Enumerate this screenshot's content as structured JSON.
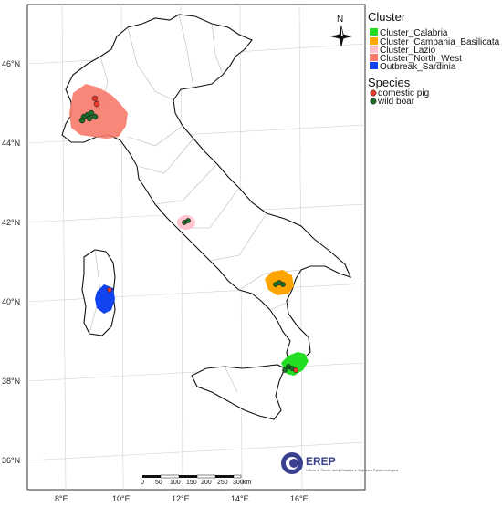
{
  "map": {
    "lat_ticks": [
      "46°N",
      "44°N",
      "42°N",
      "40°N",
      "38°N",
      "36°N"
    ],
    "lon_ticks": [
      "8°E",
      "10°E",
      "12°E",
      "14°E",
      "16°E"
    ],
    "north_label": "N"
  },
  "legend": {
    "cluster_title": "Cluster",
    "clusters": [
      {
        "label": "Cluster_Calabria",
        "color": "#22dd22"
      },
      {
        "label": "Cluster_Campania_Basilicata",
        "color": "#ffa500"
      },
      {
        "label": "Cluster_Lazio",
        "color": "#ffc0cb"
      },
      {
        "label": "Cluster_North_West",
        "color": "#f77a6a"
      },
      {
        "label": "Outbreak_Sardinia",
        "color": "#1144ee"
      }
    ],
    "species_title": "Species",
    "species": [
      {
        "label": "domestic pig",
        "color": "#e8392c"
      },
      {
        "label": "wild boar",
        "color": "#1d6b2a"
      }
    ]
  },
  "scale_bar": {
    "ticks": [
      "0",
      "50",
      "100",
      "150",
      "200",
      "250",
      "300"
    ],
    "unit": "km"
  },
  "logo": {
    "name": "EREP",
    "subtitle": "Ufficio di Studio della Malattia e Vigilanza Epidemiologica"
  }
}
